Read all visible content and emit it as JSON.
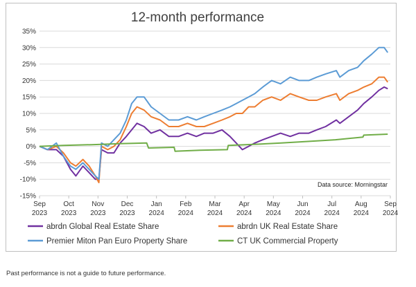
{
  "chart_data": {
    "type": "line",
    "title": "12-month performance",
    "source_note": "Data source: Morningstar",
    "ylim": [
      -15,
      35
    ],
    "y_ticks": [
      -15,
      -10,
      -5,
      0,
      5,
      10,
      15,
      20,
      25,
      30,
      35
    ],
    "y_tick_format": "percent",
    "x_ticks": [
      {
        "month": "Sep",
        "year": "2023"
      },
      {
        "month": "Oct",
        "year": "2023"
      },
      {
        "month": "Nov",
        "year": "2023"
      },
      {
        "month": "Dec",
        "year": "2023"
      },
      {
        "month": "Jan",
        "year": "2024"
      },
      {
        "month": "Feb",
        "year": "2024"
      },
      {
        "month": "Mar",
        "year": "2024"
      },
      {
        "month": "Apr",
        "year": "2024"
      },
      {
        "month": "May",
        "year": "2024"
      },
      {
        "month": "Jun",
        "year": "2024"
      },
      {
        "month": "Jul",
        "year": "2024"
      },
      {
        "month": "Aug",
        "year": "2024"
      },
      {
        "month": "Sep",
        "year": "2024"
      }
    ],
    "grid": "horizontal",
    "legend_position": "bottom",
    "series": [
      {
        "name": "abrdn Global Real Estate Share",
        "color": "#7030a0",
        "points": [
          [
            "2023-09-01",
            0
          ],
          [
            "2023-09-10",
            -1
          ],
          [
            "2023-09-20",
            -1
          ],
          [
            "2023-09-28",
            -3
          ],
          [
            "2023-10-06",
            -7
          ],
          [
            "2023-10-12",
            -9
          ],
          [
            "2023-10-20",
            -6
          ],
          [
            "2023-10-27",
            -8
          ],
          [
            "2023-11-03",
            -10
          ],
          [
            "2023-11-07",
            -10
          ],
          [
            "2023-11-10",
            -1
          ],
          [
            "2023-11-17",
            -2
          ],
          [
            "2023-11-24",
            -2
          ],
          [
            "2023-12-01",
            1
          ],
          [
            "2023-12-08",
            3
          ],
          [
            "2023-12-14",
            5
          ],
          [
            "2023-12-20",
            7
          ],
          [
            "2023-12-28",
            6
          ],
          [
            "2024-01-05",
            4
          ],
          [
            "2024-01-15",
            5
          ],
          [
            "2024-01-25",
            3
          ],
          [
            "2024-02-05",
            3
          ],
          [
            "2024-02-15",
            4
          ],
          [
            "2024-02-25",
            3
          ],
          [
            "2024-03-05",
            4
          ],
          [
            "2024-03-15",
            4
          ],
          [
            "2024-03-25",
            5
          ],
          [
            "2024-04-03",
            3
          ],
          [
            "2024-04-10",
            1
          ],
          [
            "2024-04-17",
            -1
          ],
          [
            "2024-04-24",
            0
          ],
          [
            "2024-05-01",
            1
          ],
          [
            "2024-05-10",
            2
          ],
          [
            "2024-05-20",
            3
          ],
          [
            "2024-05-30",
            4
          ],
          [
            "2024-06-10",
            3
          ],
          [
            "2024-06-20",
            4
          ],
          [
            "2024-07-01",
            4
          ],
          [
            "2024-07-10",
            5
          ],
          [
            "2024-07-20",
            6
          ],
          [
            "2024-08-01",
            8
          ],
          [
            "2024-08-05",
            7
          ],
          [
            "2024-08-15",
            9
          ],
          [
            "2024-08-25",
            11
          ],
          [
            "2024-09-01",
            13
          ],
          [
            "2024-09-10",
            15
          ],
          [
            "2024-09-18",
            17
          ],
          [
            "2024-09-24",
            18
          ],
          [
            "2024-09-28",
            17.5
          ]
        ]
      },
      {
        "name": "abrdn UK Real Estate Share",
        "color": "#ed7d31",
        "points": [
          [
            "2023-09-01",
            0
          ],
          [
            "2023-09-10",
            -1
          ],
          [
            "2023-09-20",
            0
          ],
          [
            "2023-09-28",
            -2
          ],
          [
            "2023-10-06",
            -5
          ],
          [
            "2023-10-12",
            -6
          ],
          [
            "2023-10-20",
            -4
          ],
          [
            "2023-10-27",
            -6
          ],
          [
            "2023-11-03",
            -9
          ],
          [
            "2023-11-07",
            -11
          ],
          [
            "2023-11-10",
            0
          ],
          [
            "2023-11-17",
            -1
          ],
          [
            "2023-11-24",
            0
          ],
          [
            "2023-12-01",
            2
          ],
          [
            "2023-12-08",
            6
          ],
          [
            "2023-12-14",
            10
          ],
          [
            "2023-12-20",
            12
          ],
          [
            "2023-12-28",
            11
          ],
          [
            "2024-01-05",
            9
          ],
          [
            "2024-01-15",
            8
          ],
          [
            "2024-01-25",
            6
          ],
          [
            "2024-02-05",
            6
          ],
          [
            "2024-02-15",
            7
          ],
          [
            "2024-02-25",
            6
          ],
          [
            "2024-03-05",
            6
          ],
          [
            "2024-03-15",
            7
          ],
          [
            "2024-03-25",
            8
          ],
          [
            "2024-04-03",
            9
          ],
          [
            "2024-04-10",
            10
          ],
          [
            "2024-04-17",
            10
          ],
          [
            "2024-04-24",
            12
          ],
          [
            "2024-05-01",
            12
          ],
          [
            "2024-05-10",
            14
          ],
          [
            "2024-05-20",
            15
          ],
          [
            "2024-05-30",
            14
          ],
          [
            "2024-06-10",
            16
          ],
          [
            "2024-06-20",
            15
          ],
          [
            "2024-07-01",
            14
          ],
          [
            "2024-07-10",
            14
          ],
          [
            "2024-07-20",
            15
          ],
          [
            "2024-08-01",
            16
          ],
          [
            "2024-08-05",
            14
          ],
          [
            "2024-08-15",
            16
          ],
          [
            "2024-08-25",
            17
          ],
          [
            "2024-09-01",
            18
          ],
          [
            "2024-09-10",
            19
          ],
          [
            "2024-09-18",
            21
          ],
          [
            "2024-09-24",
            21
          ],
          [
            "2024-09-28",
            19.5
          ]
        ]
      },
      {
        "name": "Premier Miton Pan Euro Property Share",
        "color": "#5b9bd5",
        "points": [
          [
            "2023-09-01",
            0
          ],
          [
            "2023-09-10",
            -1
          ],
          [
            "2023-09-20",
            1
          ],
          [
            "2023-09-28",
            -3
          ],
          [
            "2023-10-06",
            -6
          ],
          [
            "2023-10-12",
            -7
          ],
          [
            "2023-10-20",
            -5
          ],
          [
            "2023-10-27",
            -7
          ],
          [
            "2023-11-03",
            -9
          ],
          [
            "2023-11-07",
            -10
          ],
          [
            "2023-11-10",
            1
          ],
          [
            "2023-11-17",
            0
          ],
          [
            "2023-11-24",
            2
          ],
          [
            "2023-12-01",
            4
          ],
          [
            "2023-12-08",
            8
          ],
          [
            "2023-12-14",
            13
          ],
          [
            "2023-12-20",
            15
          ],
          [
            "2023-12-28",
            15
          ],
          [
            "2024-01-05",
            12
          ],
          [
            "2024-01-15",
            10
          ],
          [
            "2024-01-25",
            8
          ],
          [
            "2024-02-05",
            8
          ],
          [
            "2024-02-15",
            9
          ],
          [
            "2024-02-25",
            8
          ],
          [
            "2024-03-05",
            9
          ],
          [
            "2024-03-15",
            10
          ],
          [
            "2024-03-25",
            11
          ],
          [
            "2024-04-03",
            12
          ],
          [
            "2024-04-10",
            13
          ],
          [
            "2024-04-17",
            14
          ],
          [
            "2024-04-24",
            15
          ],
          [
            "2024-05-01",
            16
          ],
          [
            "2024-05-10",
            18
          ],
          [
            "2024-05-20",
            20
          ],
          [
            "2024-05-30",
            19
          ],
          [
            "2024-06-10",
            21
          ],
          [
            "2024-06-20",
            20
          ],
          [
            "2024-07-01",
            20
          ],
          [
            "2024-07-10",
            21
          ],
          [
            "2024-07-20",
            22
          ],
          [
            "2024-08-01",
            23
          ],
          [
            "2024-08-05",
            21
          ],
          [
            "2024-08-15",
            23
          ],
          [
            "2024-08-25",
            24
          ],
          [
            "2024-09-01",
            26
          ],
          [
            "2024-09-10",
            28
          ],
          [
            "2024-09-18",
            30
          ],
          [
            "2024-09-24",
            30
          ],
          [
            "2024-09-28",
            28.5
          ]
        ]
      },
      {
        "name": "CT UK Commercial Property",
        "color": "#70ad47",
        "points": [
          [
            "2023-09-01",
            0
          ],
          [
            "2023-09-28",
            0.3
          ],
          [
            "2023-10-30",
            0.5
          ],
          [
            "2023-11-30",
            0.8
          ],
          [
            "2023-12-31",
            1.0
          ],
          [
            "2024-01-02",
            -0.5
          ],
          [
            "2024-01-31",
            -0.3
          ],
          [
            "2024-02-01",
            -1.5
          ],
          [
            "2024-02-29",
            -1.2
          ],
          [
            "2024-03-31",
            -1.0
          ],
          [
            "2024-04-01",
            0.3
          ],
          [
            "2024-04-30",
            0.6
          ],
          [
            "2024-05-31",
            1.0
          ],
          [
            "2024-06-30",
            1.5
          ],
          [
            "2024-07-31",
            2.0
          ],
          [
            "2024-08-31",
            2.8
          ],
          [
            "2024-09-01",
            3.4
          ],
          [
            "2024-09-28",
            3.7
          ]
        ]
      }
    ]
  },
  "footnote": "Past performance is not a guide to future performance."
}
